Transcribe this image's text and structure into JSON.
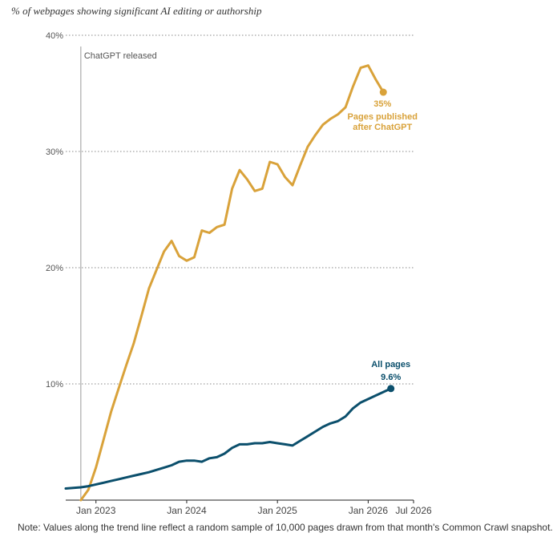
{
  "subtitle": "% of webpages showing significant AI editing or authorship",
  "note": "Note: Values along the trend line reflect a random sample of 10,000 pages drawn from that month's Common Crawl snapshot.",
  "chart_data": {
    "type": "line",
    "title": "",
    "subtitle": "% of webpages showing significant AI editing or authorship",
    "xlabel": "",
    "ylabel": "",
    "ylim": [
      0,
      40
    ],
    "yticks": [
      {
        "value": 10,
        "label": "10%"
      },
      {
        "value": 20,
        "label": "20%"
      },
      {
        "value": 30,
        "label": "30%"
      },
      {
        "value": 40,
        "label": "40%"
      }
    ],
    "xticks": [
      {
        "value": "2023-01",
        "label": "Jan 2023"
      },
      {
        "value": "2024-01",
        "label": "Jan 2024"
      },
      {
        "value": "2025-01",
        "label": "Jan 2025"
      },
      {
        "value": "2026-01",
        "label": "Jan 2026"
      },
      {
        "value": "2026-07",
        "label": "Jul 2026"
      }
    ],
    "xlim": [
      "2022-09",
      "2026-07"
    ],
    "grid": "horizontal dotted",
    "annotation": {
      "x": "2022-11",
      "label": "ChatGPT released"
    },
    "series": [
      {
        "name": "Pages published after ChatGPT",
        "color": "#d9a23a",
        "end_label": "35%",
        "points": [
          [
            "2022-11",
            0
          ],
          [
            "2022-12",
            0.9
          ],
          [
            "2023-01",
            2.8
          ],
          [
            "2023-02",
            5.2
          ],
          [
            "2023-03",
            7.6
          ],
          [
            "2023-04",
            9.6
          ],
          [
            "2023-05",
            11.6
          ],
          [
            "2023-06",
            13.5
          ],
          [
            "2023-07",
            15.8
          ],
          [
            "2023-08",
            18.2
          ],
          [
            "2023-09",
            19.8
          ],
          [
            "2023-10",
            21.4
          ],
          [
            "2023-11",
            22.3
          ],
          [
            "2023-12",
            21.0
          ],
          [
            "2024-01",
            20.6
          ],
          [
            "2024-02",
            20.9
          ],
          [
            "2024-03",
            23.2
          ],
          [
            "2024-04",
            23.0
          ],
          [
            "2024-05",
            23.5
          ],
          [
            "2024-06",
            23.7
          ],
          [
            "2024-07",
            26.8
          ],
          [
            "2024-08",
            28.4
          ],
          [
            "2024-09",
            27.6
          ],
          [
            "2024-10",
            26.6
          ],
          [
            "2024-11",
            26.8
          ],
          [
            "2024-12",
            29.1
          ],
          [
            "2025-01",
            28.9
          ],
          [
            "2025-02",
            27.8
          ],
          [
            "2025-03",
            27.1
          ],
          [
            "2025-04",
            28.8
          ],
          [
            "2025-05",
            30.4
          ],
          [
            "2025-06",
            31.4
          ],
          [
            "2025-07",
            32.3
          ],
          [
            "2025-08",
            32.8
          ],
          [
            "2025-09",
            33.2
          ],
          [
            "2025-10",
            33.8
          ],
          [
            "2025-11",
            35.6
          ],
          [
            "2025-12",
            37.2
          ],
          [
            "2026-01",
            37.4
          ],
          [
            "2026-02",
            36.2
          ],
          [
            "2026-03",
            35.1
          ]
        ]
      },
      {
        "name": "All pages",
        "color": "#0b4f6c",
        "end_label": "9.6%",
        "points": [
          [
            "2022-09",
            1.0
          ],
          [
            "2022-10",
            1.05
          ],
          [
            "2022-11",
            1.1
          ],
          [
            "2022-12",
            1.2
          ],
          [
            "2023-01",
            1.35
          ],
          [
            "2023-02",
            1.5
          ],
          [
            "2023-03",
            1.65
          ],
          [
            "2023-04",
            1.8
          ],
          [
            "2023-05",
            1.95
          ],
          [
            "2023-06",
            2.1
          ],
          [
            "2023-07",
            2.25
          ],
          [
            "2023-08",
            2.4
          ],
          [
            "2023-09",
            2.6
          ],
          [
            "2023-10",
            2.8
          ],
          [
            "2023-11",
            3.0
          ],
          [
            "2023-12",
            3.3
          ],
          [
            "2024-01",
            3.4
          ],
          [
            "2024-02",
            3.4
          ],
          [
            "2024-03",
            3.3
          ],
          [
            "2024-04",
            3.6
          ],
          [
            "2024-05",
            3.7
          ],
          [
            "2024-06",
            4.0
          ],
          [
            "2024-07",
            4.5
          ],
          [
            "2024-08",
            4.8
          ],
          [
            "2024-09",
            4.8
          ],
          [
            "2024-10",
            4.9
          ],
          [
            "2024-11",
            4.9
          ],
          [
            "2024-12",
            5.0
          ],
          [
            "2025-01",
            4.9
          ],
          [
            "2025-02",
            4.8
          ],
          [
            "2025-03",
            4.7
          ],
          [
            "2025-04",
            5.1
          ],
          [
            "2025-05",
            5.5
          ],
          [
            "2025-06",
            5.9
          ],
          [
            "2025-07",
            6.3
          ],
          [
            "2025-08",
            6.6
          ],
          [
            "2025-09",
            6.8
          ],
          [
            "2025-10",
            7.2
          ],
          [
            "2025-11",
            7.9
          ],
          [
            "2025-12",
            8.4
          ],
          [
            "2026-01",
            8.7
          ],
          [
            "2026-02",
            9.0
          ],
          [
            "2026-03",
            9.3
          ],
          [
            "2026-04",
            9.6
          ]
        ]
      }
    ],
    "labels": [
      {
        "series": 0,
        "lines": [
          "Pages published",
          "after ChatGPT"
        ]
      },
      {
        "series": 1,
        "lines": [
          "All pages"
        ]
      }
    ]
  }
}
